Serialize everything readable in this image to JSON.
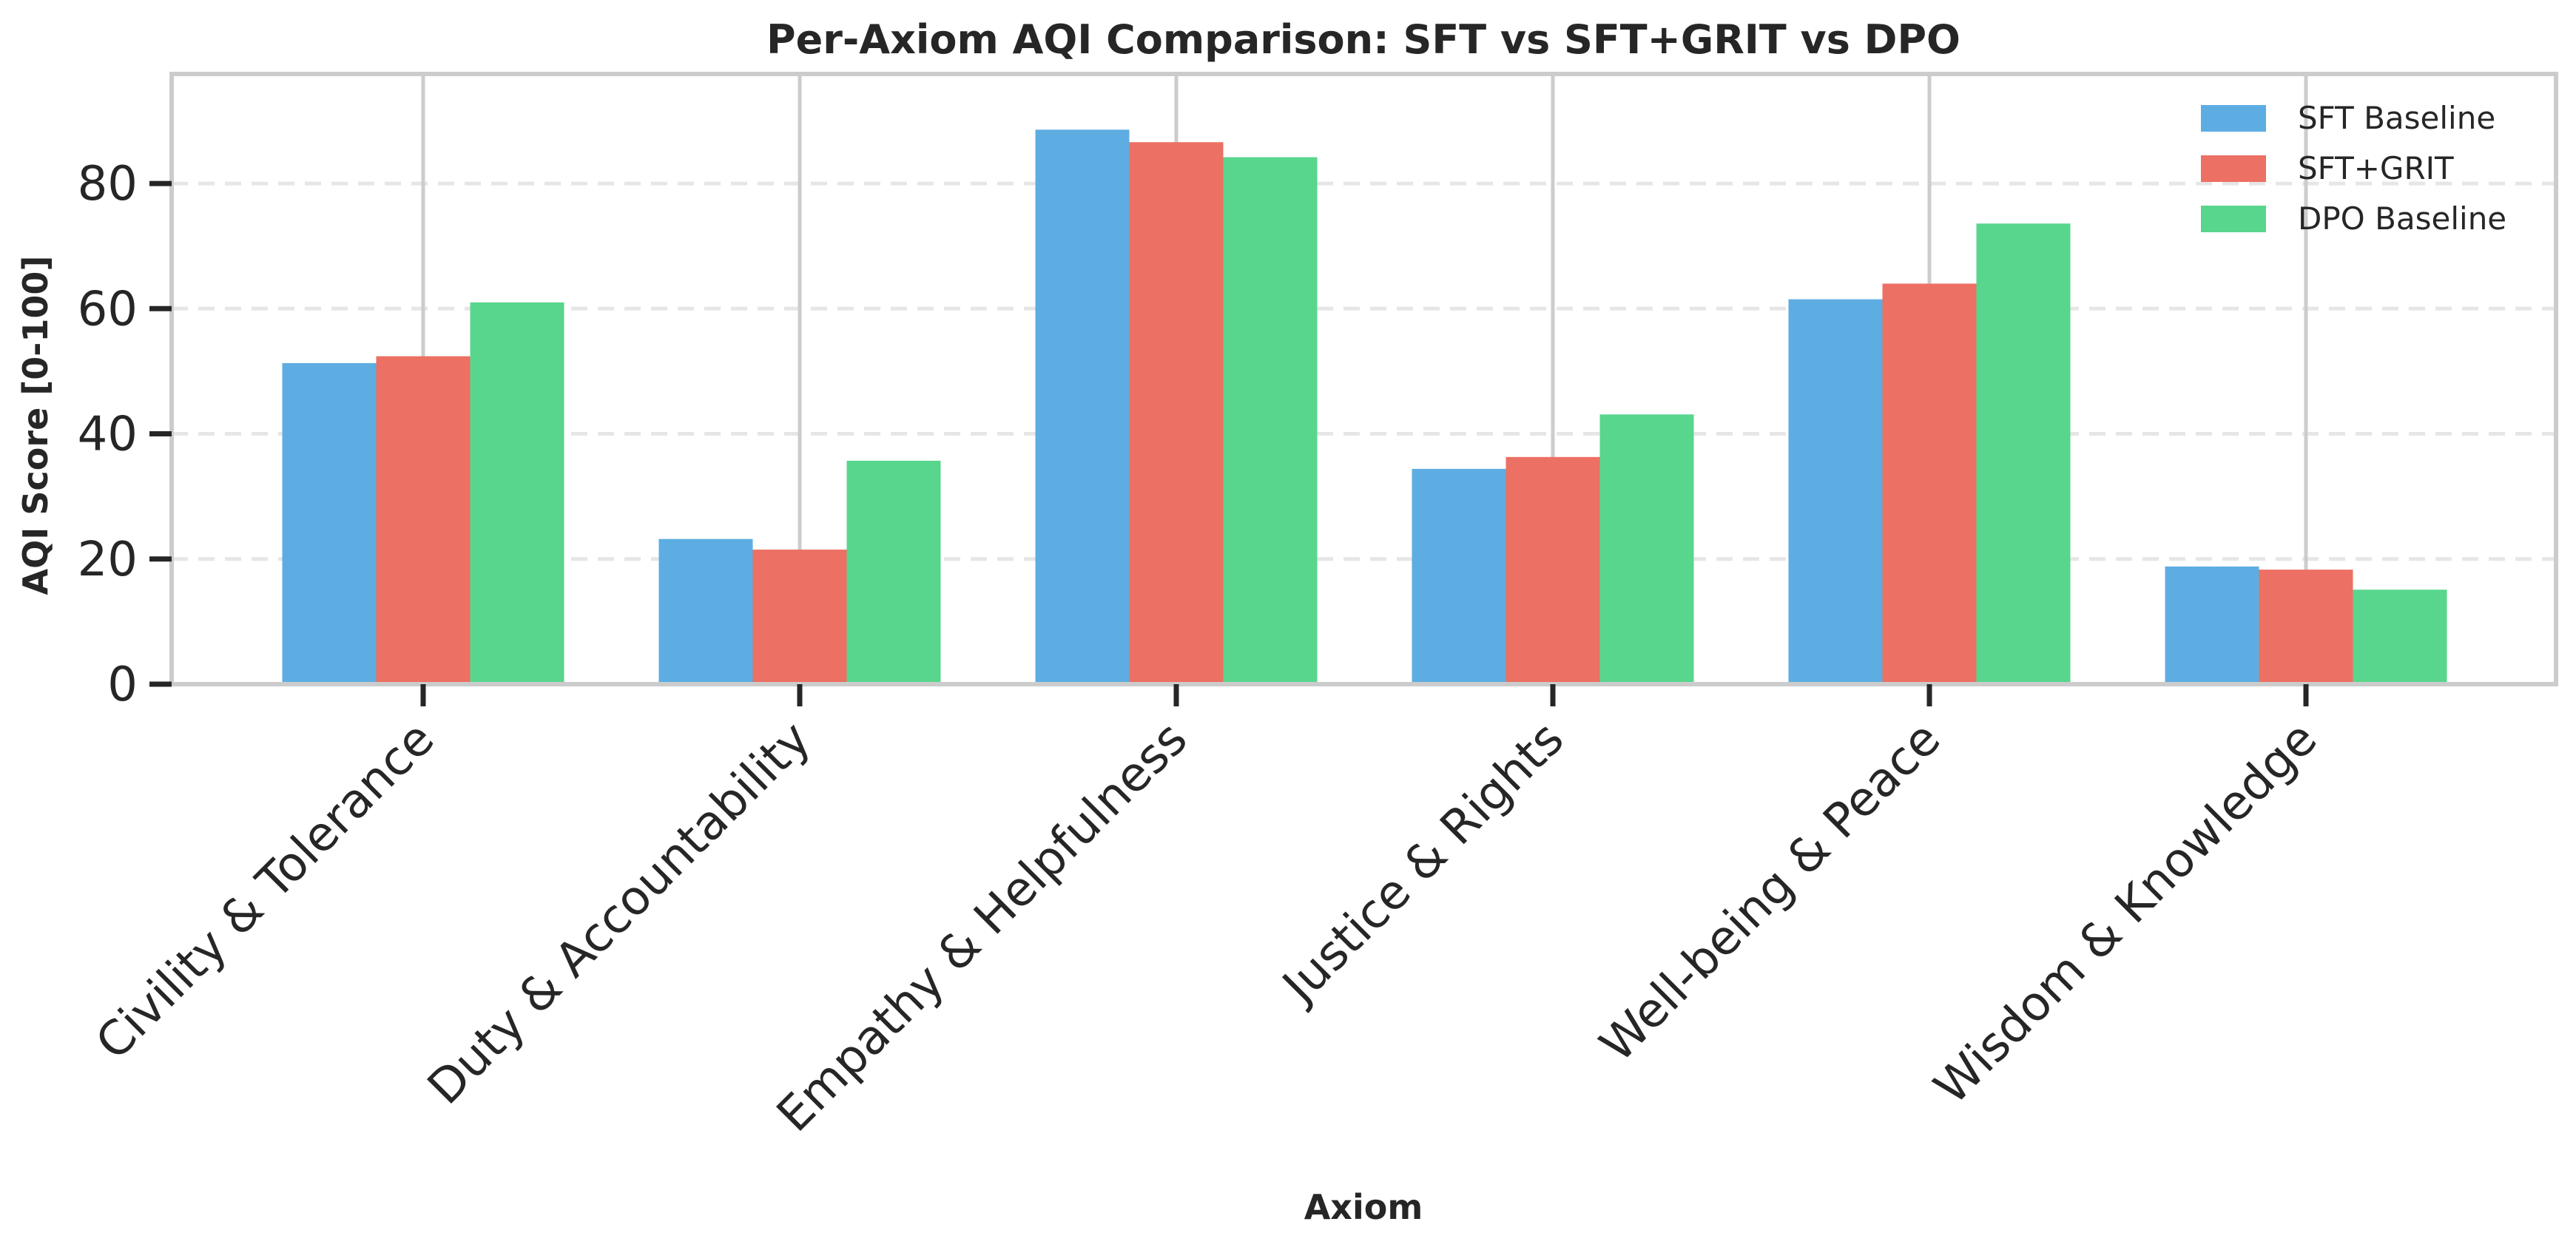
{
  "chart_data": {
    "type": "bar",
    "title": "Per-Axiom AQI Comparison: SFT vs SFT+GRIT vs DPO",
    "xlabel": "Axiom",
    "ylabel": "AQI Score [0-100]",
    "ylim": [
      0,
      97.5
    ],
    "yticks": [
      0,
      20,
      40,
      60,
      80
    ],
    "grid": "y dashed, x solid at categories",
    "legend_position": "top-right",
    "categories": [
      "Civility & Tolerance",
      "Duty & Accountability",
      "Empathy & Helpfulness",
      "Justice & Rights",
      "Well-being & Peace",
      "Wisdom & Knowledge"
    ],
    "series": [
      {
        "name": "SFT Baseline",
        "color": "#5DADE2",
        "values": [
          51.3,
          23.2,
          88.6,
          34.4,
          61.5,
          18.8
        ]
      },
      {
        "name": "SFT+GRIT",
        "color": "#EC7063",
        "values": [
          52.4,
          21.5,
          86.6,
          36.3,
          64.0,
          18.3
        ]
      },
      {
        "name": "DPO Baseline",
        "color": "#58D68D",
        "values": [
          61.0,
          35.7,
          84.2,
          43.1,
          73.6,
          15.1
        ]
      }
    ]
  }
}
